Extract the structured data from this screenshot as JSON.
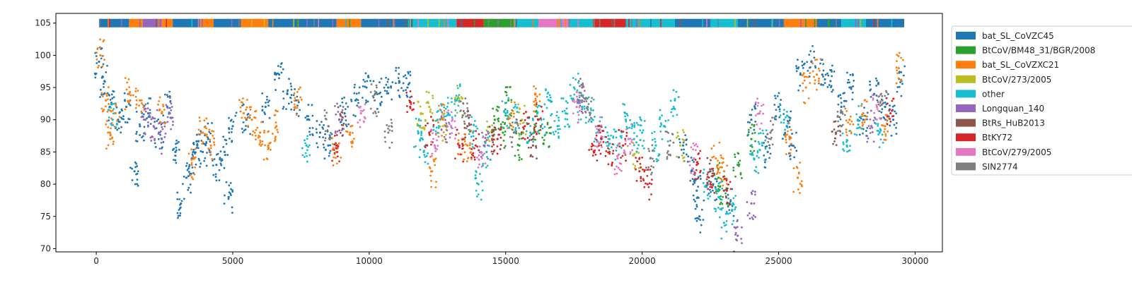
{
  "chart_data": {
    "type": "scatter",
    "title": "",
    "xlabel": "",
    "ylabel": "",
    "xlim": [
      -1480,
      31000
    ],
    "ylim": [
      69.5,
      106.5
    ],
    "x_ticks": [
      0,
      5000,
      10000,
      15000,
      20000,
      25000,
      30000
    ],
    "x_tick_labels": [
      "0",
      "5000",
      "10000",
      "15000",
      "20000",
      "25000",
      "30000"
    ],
    "y_ticks": [
      70,
      75,
      80,
      85,
      90,
      95,
      100,
      105
    ],
    "y_tick_labels": [
      "70",
      "75",
      "80",
      "85",
      "90",
      "95",
      "100",
      "105"
    ],
    "grid": false,
    "legend_position": "outside upper right",
    "legend": [
      {
        "label": "bat_SL_CoVZC45",
        "color": "#1f77b4"
      },
      {
        "label": "BtCoV/BM48_31/BGR/2008",
        "color": "#2ca02c"
      },
      {
        "label": "bat_SL_CoVZXC21",
        "color": "#ff7f0e"
      },
      {
        "label": "BtCoV/273/2005",
        "color": "#bcbd22"
      },
      {
        "label": "other",
        "color": "#17becf"
      },
      {
        "label": "Longquan_140",
        "color": "#9467bd"
      },
      {
        "label": "BtRs_HuB2013",
        "color": "#8c564b"
      },
      {
        "label": "BtKY72",
        "color": "#d62728"
      },
      {
        "label": "BtCoV/279/2005",
        "color": "#e377c2"
      },
      {
        "label": "SIN2774",
        "color": "#7f7f7f"
      }
    ],
    "top_band": {
      "y": 105,
      "x_range": [
        100,
        29600
      ],
      "segments": [
        {
          "start": 100,
          "end": 1200,
          "series": "bat_SL_CoVZC45"
        },
        {
          "start": 1200,
          "end": 1700,
          "series": "bat_SL_CoVZXC21"
        },
        {
          "start": 1700,
          "end": 2400,
          "series": "Longquan_140"
        },
        {
          "start": 2400,
          "end": 2800,
          "series": "bat_SL_CoVZXC21"
        },
        {
          "start": 2800,
          "end": 3800,
          "series": "bat_SL_CoVZC45"
        },
        {
          "start": 3800,
          "end": 4300,
          "series": "bat_SL_CoVZXC21"
        },
        {
          "start": 4300,
          "end": 5300,
          "series": "bat_SL_CoVZC45"
        },
        {
          "start": 5300,
          "end": 6300,
          "series": "bat_SL_CoVZXC21"
        },
        {
          "start": 6300,
          "end": 8800,
          "series": "bat_SL_CoVZC45"
        },
        {
          "start": 8800,
          "end": 9700,
          "series": "bat_SL_CoVZXC21"
        },
        {
          "start": 9700,
          "end": 11600,
          "series": "bat_SL_CoVZC45"
        },
        {
          "start": 11600,
          "end": 13200,
          "series": "other"
        },
        {
          "start": 13200,
          "end": 14200,
          "series": "BtKY72"
        },
        {
          "start": 14200,
          "end": 15300,
          "series": "BtCoV/BM48_31/BGR/2008"
        },
        {
          "start": 15300,
          "end": 16200,
          "series": "other"
        },
        {
          "start": 16200,
          "end": 17300,
          "series": "BtCoV/279/2005"
        },
        {
          "start": 17300,
          "end": 18200,
          "series": "other"
        },
        {
          "start": 18200,
          "end": 19400,
          "series": "BtKY72"
        },
        {
          "start": 19400,
          "end": 21200,
          "series": "other"
        },
        {
          "start": 21200,
          "end": 22500,
          "series": "bat_SL_CoVZC45"
        },
        {
          "start": 22500,
          "end": 23500,
          "series": "other"
        },
        {
          "start": 23500,
          "end": 25200,
          "series": "bat_SL_CoVZC45"
        },
        {
          "start": 25200,
          "end": 26400,
          "series": "bat_SL_CoVZXC21"
        },
        {
          "start": 26400,
          "end": 27300,
          "series": "bat_SL_CoVZC45"
        },
        {
          "start": 27300,
          "end": 28200,
          "series": "other"
        },
        {
          "start": 28200,
          "end": 29600,
          "series": "bat_SL_CoVZC45"
        }
      ]
    },
    "series": [
      {
        "name": "bat_SL_CoVZC45",
        "color": "#1f77b4",
        "points": [
          [
            100,
            99
          ],
          [
            300,
            96
          ],
          [
            500,
            92
          ],
          [
            800,
            90
          ],
          [
            1100,
            92
          ],
          [
            1400,
            82
          ],
          [
            1600,
            89
          ],
          [
            1900,
            91
          ],
          [
            2300,
            88
          ],
          [
            2600,
            92
          ],
          [
            2900,
            85
          ],
          [
            3100,
            77
          ],
          [
            3300,
            81
          ],
          [
            3500,
            84
          ],
          [
            3700,
            86
          ],
          [
            3900,
            85
          ],
          [
            4100,
            87
          ],
          [
            4400,
            83
          ],
          [
            4700,
            85
          ],
          [
            4850,
            78
          ],
          [
            5000,
            89
          ],
          [
            5500,
            90
          ],
          [
            6200,
            92
          ],
          [
            6700,
            97
          ],
          [
            7000,
            94
          ],
          [
            7300,
            93
          ],
          [
            7800,
            90
          ],
          [
            8200,
            88
          ],
          [
            8500,
            86
          ],
          [
            9100,
            91
          ],
          [
            9500,
            93
          ],
          [
            9900,
            95
          ],
          [
            10300,
            94
          ],
          [
            10700,
            95
          ],
          [
            11100,
            96
          ],
          [
            11400,
            95
          ],
          [
            21500,
            86
          ],
          [
            21800,
            82
          ],
          [
            22000,
            79
          ],
          [
            22100,
            75
          ],
          [
            22600,
            80
          ],
          [
            23200,
            77
          ],
          [
            24000,
            90
          ],
          [
            24600,
            85
          ],
          [
            25000,
            92
          ],
          [
            25300,
            89
          ],
          [
            25500,
            86
          ],
          [
            25800,
            97
          ],
          [
            26200,
            99
          ],
          [
            26600,
            97
          ],
          [
            26900,
            96
          ],
          [
            27300,
            92
          ],
          [
            27600,
            95
          ],
          [
            28100,
            90
          ],
          [
            28500,
            94
          ],
          [
            28900,
            92
          ],
          [
            29200,
            90
          ],
          [
            29500,
            96
          ]
        ]
      },
      {
        "name": "BtCoV/BM48_31/BGR/2008",
        "color": "#2ca02c",
        "points": [
          [
            14600,
            90
          ],
          [
            14900,
            88
          ],
          [
            15100,
            93
          ],
          [
            15500,
            86
          ],
          [
            16100,
            89
          ],
          [
            16500,
            88
          ],
          [
            22800,
            81
          ],
          [
            23000,
            79
          ],
          [
            23500,
            83
          ],
          [
            24000,
            87
          ]
        ]
      },
      {
        "name": "bat_SL_CoVZXC21",
        "color": "#ff7f0e",
        "points": [
          [
            150,
            100
          ],
          [
            350,
            93
          ],
          [
            500,
            88
          ],
          [
            700,
            91
          ],
          [
            1200,
            94
          ],
          [
            1600,
            93
          ],
          [
            2400,
            91
          ],
          [
            3500,
            83
          ],
          [
            3900,
            88
          ],
          [
            4200,
            86
          ],
          [
            5400,
            91
          ],
          [
            5700,
            90
          ],
          [
            6000,
            88
          ],
          [
            6300,
            86
          ],
          [
            6600,
            89
          ],
          [
            7400,
            93
          ],
          [
            8800,
            85
          ],
          [
            9300,
            88
          ],
          [
            12300,
            82
          ],
          [
            12600,
            90
          ],
          [
            13400,
            87
          ],
          [
            13600,
            86
          ],
          [
            15200,
            91
          ],
          [
            16100,
            93
          ],
          [
            22700,
            84
          ],
          [
            23000,
            82
          ],
          [
            25400,
            87
          ],
          [
            25700,
            81
          ],
          [
            26000,
            95
          ],
          [
            26400,
            97
          ],
          [
            27600,
            90
          ],
          [
            28100,
            91
          ],
          [
            28900,
            89
          ],
          [
            29400,
            98
          ]
        ]
      },
      {
        "name": "BtCoV/273/2005",
        "color": "#bcbd22",
        "points": [
          [
            11900,
            91
          ],
          [
            12200,
            92
          ],
          [
            12700,
            89
          ],
          [
            13300,
            93
          ],
          [
            14400,
            88
          ],
          [
            15600,
            90
          ],
          [
            19800,
            85
          ],
          [
            21400,
            86
          ]
        ]
      },
      {
        "name": "other",
        "color": "#17becf",
        "points": [
          [
            600,
            90
          ],
          [
            7700,
            86
          ],
          [
            11800,
            88
          ],
          [
            12000,
            85
          ],
          [
            12500,
            90
          ],
          [
            12900,
            91
          ],
          [
            13200,
            93
          ],
          [
            13800,
            88
          ],
          [
            14000,
            80
          ],
          [
            14300,
            85
          ],
          [
            15000,
            91
          ],
          [
            15400,
            90
          ],
          [
            15900,
            88
          ],
          [
            16300,
            90
          ],
          [
            16600,
            93
          ],
          [
            16900,
            89
          ],
          [
            17200,
            91
          ],
          [
            17500,
            95
          ],
          [
            17800,
            92
          ],
          [
            18100,
            91
          ],
          [
            18400,
            89
          ],
          [
            18800,
            87
          ],
          [
            19100,
            86
          ],
          [
            19400,
            90
          ],
          [
            19700,
            87
          ],
          [
            20000,
            88
          ],
          [
            20500,
            86
          ],
          [
            20800,
            89
          ],
          [
            21200,
            93
          ],
          [
            22400,
            80
          ],
          [
            22800,
            78
          ],
          [
            23000,
            74
          ],
          [
            23300,
            76
          ],
          [
            24100,
            84
          ],
          [
            24400,
            86
          ],
          [
            25200,
            90
          ],
          [
            27500,
            86
          ],
          [
            27900,
            90
          ],
          [
            28700,
            88
          ]
        ]
      },
      {
        "name": "Longquan_140",
        "color": "#9467bd",
        "points": [
          [
            1800,
            90
          ],
          [
            2100,
            89
          ],
          [
            2400,
            87
          ],
          [
            2700,
            91
          ],
          [
            8900,
            90
          ],
          [
            12800,
            89
          ],
          [
            14200,
            86
          ],
          [
            17800,
            93
          ],
          [
            23500,
            72
          ],
          [
            24000,
            77
          ],
          [
            28400,
            89
          ]
        ]
      },
      {
        "name": "BtRs_HuB2013",
        "color": "#8c564b",
        "points": [
          [
            9000,
            90
          ],
          [
            13600,
            89
          ],
          [
            14500,
            87
          ],
          [
            16000,
            86
          ],
          [
            22500,
            82
          ],
          [
            27100,
            88
          ]
        ]
      },
      {
        "name": "BtKY72",
        "color": "#d62728",
        "points": [
          [
            8800,
            86
          ],
          [
            11500,
            92
          ],
          [
            12200,
            88
          ],
          [
            13300,
            86
          ],
          [
            13900,
            86
          ],
          [
            14700,
            87
          ],
          [
            15700,
            89
          ],
          [
            16200,
            90
          ],
          [
            18200,
            86
          ],
          [
            18500,
            87
          ],
          [
            18800,
            85
          ],
          [
            19300,
            86
          ],
          [
            19900,
            82
          ],
          [
            20200,
            80
          ],
          [
            22000,
            83
          ],
          [
            22500,
            80
          ],
          [
            23100,
            79
          ],
          [
            29100,
            91
          ]
        ]
      },
      {
        "name": "BtCoV/279/2005",
        "color": "#e377c2",
        "points": [
          [
            9700,
            91
          ],
          [
            12400,
            86
          ],
          [
            13000,
            89
          ],
          [
            14100,
            85
          ],
          [
            17600,
            92
          ],
          [
            18400,
            88
          ],
          [
            19100,
            84
          ],
          [
            19500,
            87
          ],
          [
            21900,
            84
          ],
          [
            24300,
            91
          ],
          [
            28600,
            92
          ]
        ]
      },
      {
        "name": "SIN2774",
        "color": "#7f7f7f",
        "points": [
          [
            8500,
            89
          ],
          [
            10200,
            93
          ],
          [
            10700,
            88
          ],
          [
            13500,
            91
          ],
          [
            15300,
            88
          ],
          [
            17800,
            95
          ],
          [
            18000,
            92
          ],
          [
            20300,
            84
          ],
          [
            21000,
            86
          ],
          [
            24700,
            88
          ],
          [
            27300,
            89
          ],
          [
            28800,
            93
          ]
        ]
      }
    ]
  }
}
